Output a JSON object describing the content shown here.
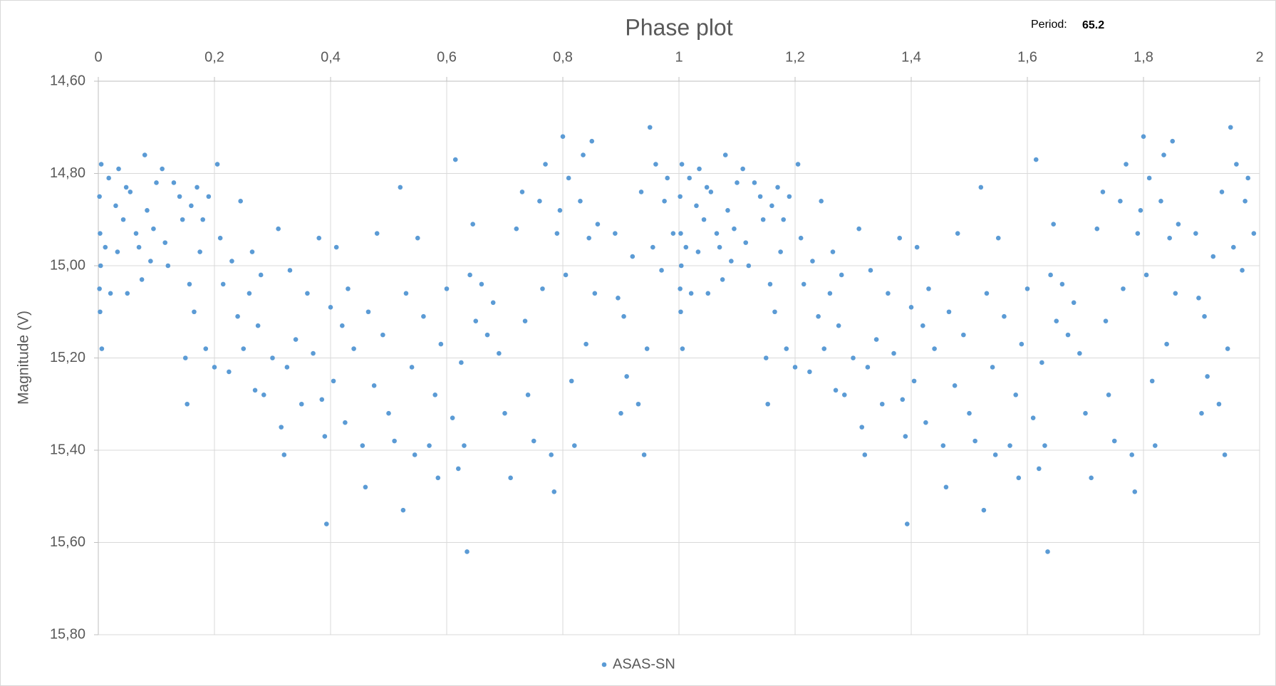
{
  "chart_data": {
    "type": "scatter",
    "title": "Phase plot",
    "annotations": {
      "period_label": "Period:",
      "period_value": 65.2
    },
    "y_label": "Magnitude (V)",
    "xlim": [
      0,
      2
    ],
    "xticks": [
      0,
      {
        "value": 0.2,
        "label": "0,2"
      },
      {
        "value": 0.4,
        "label": "0,4"
      },
      {
        "value": 0.6,
        "label": "0,6"
      },
      {
        "value": 0.8,
        "label": "0,8"
      },
      1,
      {
        "value": 1.2,
        "label": "1,2"
      },
      {
        "value": 1.4,
        "label": "1,4"
      },
      {
        "value": 1.6,
        "label": "1,6"
      },
      {
        "value": 1.8,
        "label": "1,8"
      },
      2
    ],
    "ylim": [
      14.6,
      15.8
    ],
    "y_inverted": true,
    "yticks": [
      {
        "value": 14.6,
        "label": "14,60"
      },
      {
        "value": 14.8,
        "label": "14,80"
      },
      {
        "value": 15.0,
        "label": "15,00"
      },
      {
        "value": 15.2,
        "label": "15,20"
      },
      {
        "value": 15.4,
        "label": "15,40"
      },
      {
        "value": 15.6,
        "label": "15,60"
      },
      {
        "value": 15.8,
        "label": "15,80"
      }
    ],
    "grid": true,
    "legend": "bottom",
    "series": [
      {
        "name": "ASAS-SN",
        "color": "#5b9bd5",
        "x": [
          0.002,
          0.003,
          0.004,
          0.002,
          0.003,
          0.005,
          0.006,
          0.012,
          0.018,
          0.021,
          0.03,
          0.033,
          0.035,
          0.043,
          0.048,
          0.05,
          0.055,
          0.065,
          0.07,
          0.075,
          0.08,
          0.084,
          0.09,
          0.095,
          0.1,
          0.11,
          0.115,
          0.12,
          0.13,
          0.14,
          0.145,
          0.15,
          0.153,
          0.157,
          0.16,
          0.165,
          0.17,
          0.175,
          0.18,
          0.185,
          0.19,
          0.2,
          0.205,
          0.21,
          0.215,
          0.225,
          0.23,
          0.24,
          0.245,
          0.25,
          0.26,
          0.265,
          0.27,
          0.275,
          0.28,
          0.285,
          0.3,
          0.31,
          0.315,
          0.32,
          0.325,
          0.33,
          0.34,
          0.35,
          0.36,
          0.37,
          0.38,
          0.385,
          0.39,
          0.393,
          0.4,
          0.405,
          0.41,
          0.42,
          0.425,
          0.43,
          0.44,
          0.455,
          0.46,
          0.465,
          0.475,
          0.48,
          0.49,
          0.5,
          0.51,
          0.52,
          0.525,
          0.53,
          0.54,
          0.545,
          0.55,
          0.56,
          0.57,
          0.58,
          0.585,
          0.59,
          0.6,
          0.61,
          0.615,
          0.62,
          0.625,
          0.63,
          0.635,
          0.64,
          0.645,
          0.65,
          0.66,
          0.67,
          0.68,
          0.69,
          0.7,
          0.71,
          0.72,
          0.73,
          0.735,
          0.74,
          0.75,
          0.76,
          0.765,
          0.77,
          0.78,
          0.785,
          0.79,
          0.795,
          0.8,
          0.805,
          0.81,
          0.815,
          0.82,
          0.83,
          0.835,
          0.84,
          0.845,
          0.85,
          0.855,
          0.86,
          0.89,
          0.895,
          0.9,
          0.905,
          0.91,
          0.92,
          0.93,
          0.935,
          0.94,
          0.945,
          0.95,
          0.955,
          0.96,
          0.97,
          0.975,
          0.98,
          0.99,
          1.002,
          1.003,
          1.004,
          1.002,
          1.003,
          1.005,
          1.006,
          1.012,
          1.018,
          1.021,
          1.03,
          1.033,
          1.035,
          1.043,
          1.048,
          1.05,
          1.055,
          1.065,
          1.07,
          1.075,
          1.08,
          1.084,
          1.09,
          1.095,
          1.1,
          1.11,
          1.115,
          1.12,
          1.13,
          1.14,
          1.145,
          1.15,
          1.153,
          1.157,
          1.16,
          1.165,
          1.17,
          1.175,
          1.18,
          1.185,
          1.19,
          1.2,
          1.205,
          1.21,
          1.215,
          1.225,
          1.23,
          1.24,
          1.245,
          1.25,
          1.26,
          1.265,
          1.27,
          1.275,
          1.28,
          1.285,
          1.3,
          1.31,
          1.315,
          1.32,
          1.325,
          1.33,
          1.34,
          1.35,
          1.36,
          1.37,
          1.38,
          1.385,
          1.39,
          1.393,
          1.4,
          1.405,
          1.41,
          1.42,
          1.425,
          1.43,
          1.44,
          1.455,
          1.46,
          1.465,
          1.475,
          1.48,
          1.49,
          1.5,
          1.51,
          1.52,
          1.525,
          1.53,
          1.54,
          1.545,
          1.55,
          1.56,
          1.57,
          1.58,
          1.585,
          1.59,
          1.6,
          1.61,
          1.615,
          1.62,
          1.625,
          1.63,
          1.635,
          1.64,
          1.645,
          1.65,
          1.66,
          1.67,
          1.68,
          1.69,
          1.7,
          1.71,
          1.72,
          1.73,
          1.735,
          1.74,
          1.75,
          1.76,
          1.765,
          1.77,
          1.78,
          1.785,
          1.79,
          1.795,
          1.8,
          1.805,
          1.81,
          1.815,
          1.82,
          1.83,
          1.835,
          1.84,
          1.845,
          1.85,
          1.855,
          1.86,
          1.89,
          1.895,
          1.9,
          1.905,
          1.91,
          1.92,
          1.93,
          1.935,
          1.94,
          1.945,
          1.95,
          1.955,
          1.96,
          1.97,
          1.975,
          1.98,
          1.99
        ],
        "values": [
          14.85,
          14.93,
          15.0,
          15.05,
          15.1,
          14.78,
          15.18,
          14.96,
          14.81,
          15.06,
          14.87,
          14.97,
          14.79,
          14.9,
          14.83,
          15.06,
          14.84,
          14.93,
          14.96,
          15.03,
          14.76,
          14.88,
          14.99,
          14.92,
          14.82,
          14.79,
          14.95,
          15.0,
          14.82,
          14.85,
          14.9,
          15.2,
          15.3,
          15.04,
          14.87,
          15.1,
          14.83,
          14.97,
          14.9,
          15.18,
          14.85,
          15.22,
          14.78,
          14.94,
          15.04,
          15.23,
          14.99,
          15.11,
          14.86,
          15.18,
          15.06,
          14.97,
          15.27,
          15.13,
          15.02,
          15.28,
          15.2,
          14.92,
          15.35,
          15.41,
          15.22,
          15.01,
          15.16,
          15.3,
          15.06,
          15.19,
          14.94,
          15.29,
          15.37,
          15.56,
          15.09,
          15.25,
          14.96,
          15.13,
          15.34,
          15.05,
          15.18,
          15.39,
          15.48,
          15.1,
          15.26,
          14.93,
          15.15,
          15.32,
          15.38,
          14.83,
          15.53,
          15.06,
          15.22,
          15.41,
          14.94,
          15.11,
          15.39,
          15.28,
          15.46,
          15.17,
          15.05,
          15.33,
          14.77,
          15.44,
          15.21,
          15.39,
          15.62,
          15.02,
          14.91,
          15.12,
          15.04,
          15.15,
          15.08,
          15.19,
          15.32,
          15.46,
          14.92,
          14.84,
          15.12,
          15.28,
          15.38,
          14.86,
          15.05,
          14.78,
          15.41,
          15.49,
          14.93,
          14.88,
          14.72,
          15.02,
          14.81,
          15.25,
          15.39,
          14.86,
          14.76,
          15.17,
          14.94,
          14.73,
          15.06,
          14.91,
          14.93,
          15.07,
          15.32,
          15.11,
          15.24,
          14.98,
          15.3,
          14.84,
          15.41,
          15.18,
          14.7,
          14.96,
          14.78,
          15.01,
          14.86,
          14.81,
          14.93,
          14.85,
          14.93,
          15.0,
          15.05,
          15.1,
          14.78,
          15.18,
          14.96,
          14.81,
          15.06,
          14.87,
          14.97,
          14.79,
          14.9,
          14.83,
          15.06,
          14.84,
          14.93,
          14.96,
          15.03,
          14.76,
          14.88,
          14.99,
          14.92,
          14.82,
          14.79,
          14.95,
          15.0,
          14.82,
          14.85,
          14.9,
          15.2,
          15.3,
          15.04,
          14.87,
          15.1,
          14.83,
          14.97,
          14.9,
          15.18,
          14.85,
          15.22,
          14.78,
          14.94,
          15.04,
          15.23,
          14.99,
          15.11,
          14.86,
          15.18,
          15.06,
          14.97,
          15.27,
          15.13,
          15.02,
          15.28,
          15.2,
          14.92,
          15.35,
          15.41,
          15.22,
          15.01,
          15.16,
          15.3,
          15.06,
          15.19,
          14.94,
          15.29,
          15.37,
          15.56,
          15.09,
          15.25,
          14.96,
          15.13,
          15.34,
          15.05,
          15.18,
          15.39,
          15.48,
          15.1,
          15.26,
          14.93,
          15.15,
          15.32,
          15.38,
          14.83,
          15.53,
          15.06,
          15.22,
          15.41,
          14.94,
          15.11,
          15.39,
          15.28,
          15.46,
          15.17,
          15.05,
          15.33,
          14.77,
          15.44,
          15.21,
          15.39,
          15.62,
          15.02,
          14.91,
          15.12,
          15.04,
          15.15,
          15.08,
          15.19,
          15.32,
          15.46,
          14.92,
          14.84,
          15.12,
          15.28,
          15.38,
          14.86,
          15.05,
          14.78,
          15.41,
          15.49,
          14.93,
          14.88,
          14.72,
          15.02,
          14.81,
          15.25,
          15.39,
          14.86,
          14.76,
          15.17,
          14.94,
          14.73,
          15.06,
          14.91,
          14.93,
          15.07,
          15.32,
          15.11,
          15.24,
          14.98,
          15.3,
          14.84,
          15.41,
          15.18,
          14.7,
          14.96,
          14.78,
          15.01,
          14.86,
          14.81,
          14.93
        ]
      }
    ]
  }
}
